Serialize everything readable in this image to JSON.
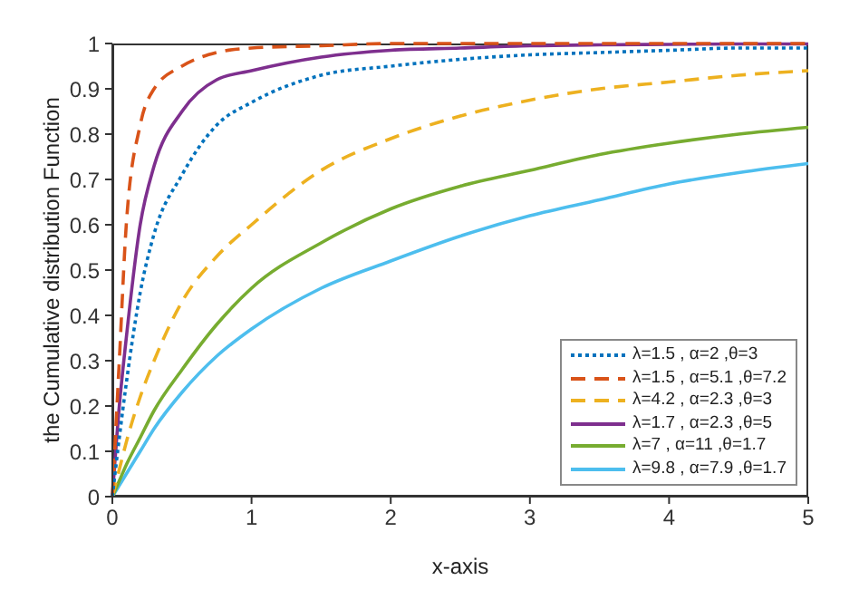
{
  "chart_data": {
    "type": "line",
    "xlabel": "x-axis",
    "ylabel": "the Cumulative distribution Function",
    "x": [
      0,
      0.05,
      0.1,
      0.2,
      0.3,
      0.5,
      0.75,
      1,
      1.5,
      2,
      2.5,
      3,
      3.5,
      4,
      4.5,
      5
    ],
    "xlim": [
      0,
      5
    ],
    "xticks": [
      0,
      1,
      2,
      3,
      4,
      5
    ],
    "ylim": [
      0,
      1
    ],
    "yticks": [
      0,
      0.1,
      0.2,
      0.3,
      0.4,
      0.5,
      0.6,
      0.7,
      0.8,
      0.9,
      1
    ],
    "grid": false,
    "legend": "bottom right",
    "marker": "none",
    "series": [
      {
        "name": "λ=1.5 , α=2 ,θ=3",
        "color": "#0072bd",
        "line_style": "dotted",
        "values": [
          0,
          0.13,
          0.25,
          0.45,
          0.58,
          0.71,
          0.82,
          0.87,
          0.93,
          0.95,
          0.965,
          0.975,
          0.98,
          0.985,
          0.99,
          0.99
        ]
      },
      {
        "name": "λ=1.5 , α=5.1 ,θ=7.2",
        "color": "#d95319",
        "line_style": "dashed",
        "values": [
          0,
          0.3,
          0.6,
          0.82,
          0.9,
          0.95,
          0.98,
          0.99,
          0.995,
          1,
          1,
          1,
          1,
          1,
          1,
          1
        ]
      },
      {
        "name": "λ=4.2 , α=2.3 ,θ=3",
        "color": "#edb120",
        "line_style": "dashed",
        "values": [
          0,
          0.06,
          0.12,
          0.22,
          0.3,
          0.43,
          0.53,
          0.6,
          0.72,
          0.79,
          0.84,
          0.875,
          0.9,
          0.915,
          0.93,
          0.94
        ]
      },
      {
        "name": "λ=1.7 , α=2.3 ,θ=5",
        "color": "#7e2f8e",
        "line_style": "solid",
        "values": [
          0,
          0.2,
          0.35,
          0.6,
          0.73,
          0.85,
          0.92,
          0.94,
          0.97,
          0.985,
          0.99,
          0.995,
          0.997,
          0.998,
          0.999,
          0.999
        ]
      },
      {
        "name": "λ=7 , α=11 ,θ=1.7",
        "color": "#77ac30",
        "line_style": "solid",
        "values": [
          0,
          0.035,
          0.07,
          0.13,
          0.19,
          0.28,
          0.38,
          0.46,
          0.56,
          0.635,
          0.685,
          0.72,
          0.755,
          0.78,
          0.8,
          0.815
        ]
      },
      {
        "name": "λ=9.8 , α=7.9 ,θ=1.7",
        "color": "#4dbeee",
        "line_style": "solid",
        "values": [
          0,
          0.025,
          0.05,
          0.1,
          0.15,
          0.23,
          0.31,
          0.37,
          0.46,
          0.52,
          0.575,
          0.62,
          0.655,
          0.69,
          0.715,
          0.735
        ]
      }
    ]
  }
}
